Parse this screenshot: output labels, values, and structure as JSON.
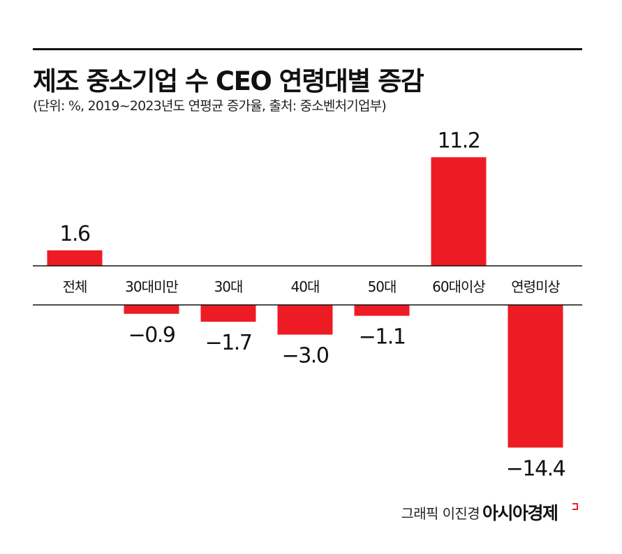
{
  "chart_data": {
    "type": "bar",
    "title": "제조 중소기업 수 CEO 연령대별 증감",
    "subtitle": "(단위: %, 2019~2023년도 연평균 증가율, 출처: 중소벤처기업부)",
    "categories": [
      "전체",
      "30대미만",
      "30대",
      "40대",
      "50대",
      "60대이상",
      "연령미상"
    ],
    "values": [
      1.6,
      -0.9,
      -1.7,
      -3.0,
      -1.1,
      11.2,
      -14.4
    ],
    "value_labels": [
      "1.6",
      "−0.9",
      "−1.7",
      "−3.0",
      "−1.1",
      "11.2",
      "−14.4"
    ],
    "bar_color": "#ed1c24",
    "grid": false,
    "legend": "none"
  },
  "footer": {
    "credit": "그래픽 이진경",
    "brand": "아시아경제"
  }
}
